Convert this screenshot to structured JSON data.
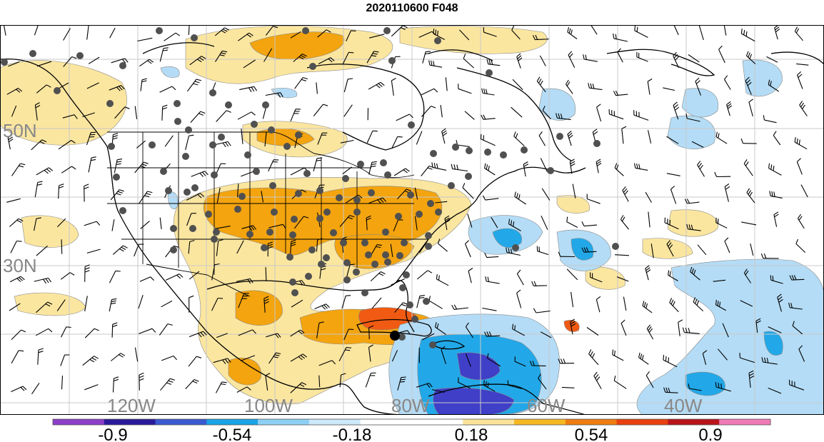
{
  "title": "2020110600 F048",
  "map": {
    "lat_labels": [
      "50N",
      "30N"
    ],
    "lon_labels": [
      "120W",
      "100W",
      "80W",
      "60W",
      "40W"
    ],
    "grid_color": "#c8c8c8",
    "label_color": "#888888",
    "shading_colors": {
      "strong_negative": "#3f3fc8",
      "negative": "#22a8e8",
      "weak_negative": "#b4dcf6",
      "weak_positive": "#fbe6a0",
      "positive": "#f3a40e",
      "strong_positive": "#f05a12"
    },
    "marker_color": "#505050",
    "highlight_marker_color": "#000000"
  },
  "colorbar": {
    "colors": [
      "#8c3ec8",
      "#2a1a9a",
      "#3b5ad0",
      "#1aa4e6",
      "#8ed0f5",
      "#cde9fa",
      "#ffffff",
      "#ffffff",
      "#fbe39a",
      "#f5b820",
      "#f07d10",
      "#e8400f",
      "#b8141a",
      "#f07ab8"
    ],
    "tick_labels": [
      "-0.9",
      "-0.54",
      "-0.18",
      "0.18",
      "0.54",
      "0.9"
    ]
  }
}
